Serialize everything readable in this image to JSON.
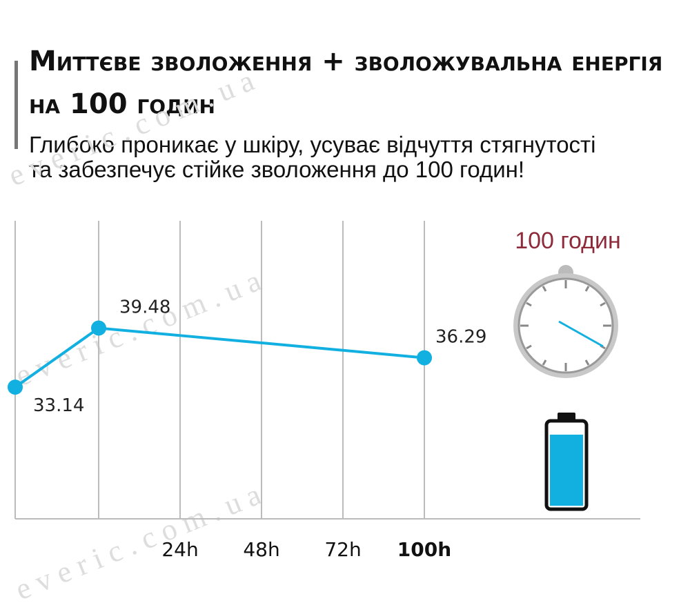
{
  "chart_data": {
    "type": "line",
    "title": "Миттєве зволоження + зволожувальна енергія на 100 годин",
    "subtitle": "Глибоко проникає у шкіру, усуває відчуття стягнутості та забезпечує стійке зволоження до 100 годин!",
    "badge": "100 годин",
    "watermark": "e v e r i c . c o m . u a",
    "categories": [
      null,
      null,
      "24h",
      "48h",
      "72h",
      "100h"
    ],
    "values": [
      33.14,
      39.48,
      38.68,
      37.89,
      37.09,
      36.29
    ],
    "markers": [
      true,
      true,
      false,
      false,
      false,
      true
    ],
    "color": "#12b0e0",
    "ylim": [
      19,
      51
    ],
    "grid": true
  }
}
